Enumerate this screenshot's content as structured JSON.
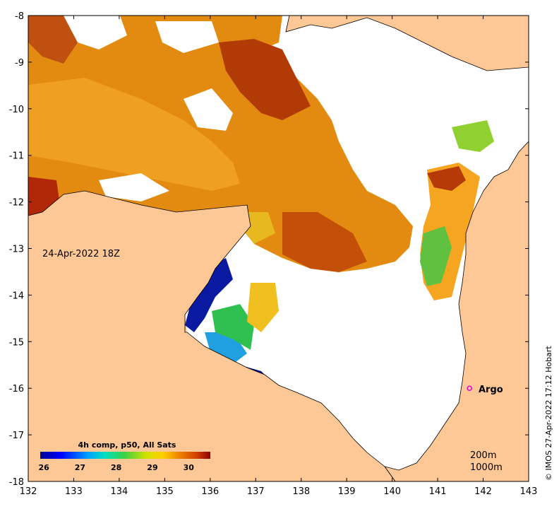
{
  "map": {
    "date_label": "24-Apr-2022 18Z",
    "x_ticks": [
      "132",
      "133",
      "134",
      "135",
      "136",
      "137",
      "138",
      "139",
      "140",
      "141",
      "142",
      "143"
    ],
    "y_ticks": [
      "-8",
      "-9",
      "-10",
      "-11",
      "-12",
      "-13",
      "-14",
      "-15",
      "-16",
      "-17",
      "-18"
    ],
    "colorbar": {
      "title": "4h comp, p50, All Sats",
      "tick_labels": [
        "26",
        "27",
        "28",
        "29",
        "30"
      ],
      "range": [
        25.9,
        30.6
      ]
    },
    "argo": {
      "label": "Argo",
      "lon": 141.7,
      "lat": -16.0,
      "color": "#e000e0"
    },
    "depth_legend": [
      "200m",
      "1000m"
    ],
    "credit": "© IMOS 27-Apr-2022 17:12 Hobart",
    "colors": {
      "land": "#fdc896",
      "nodata": "#ffffff"
    }
  }
}
